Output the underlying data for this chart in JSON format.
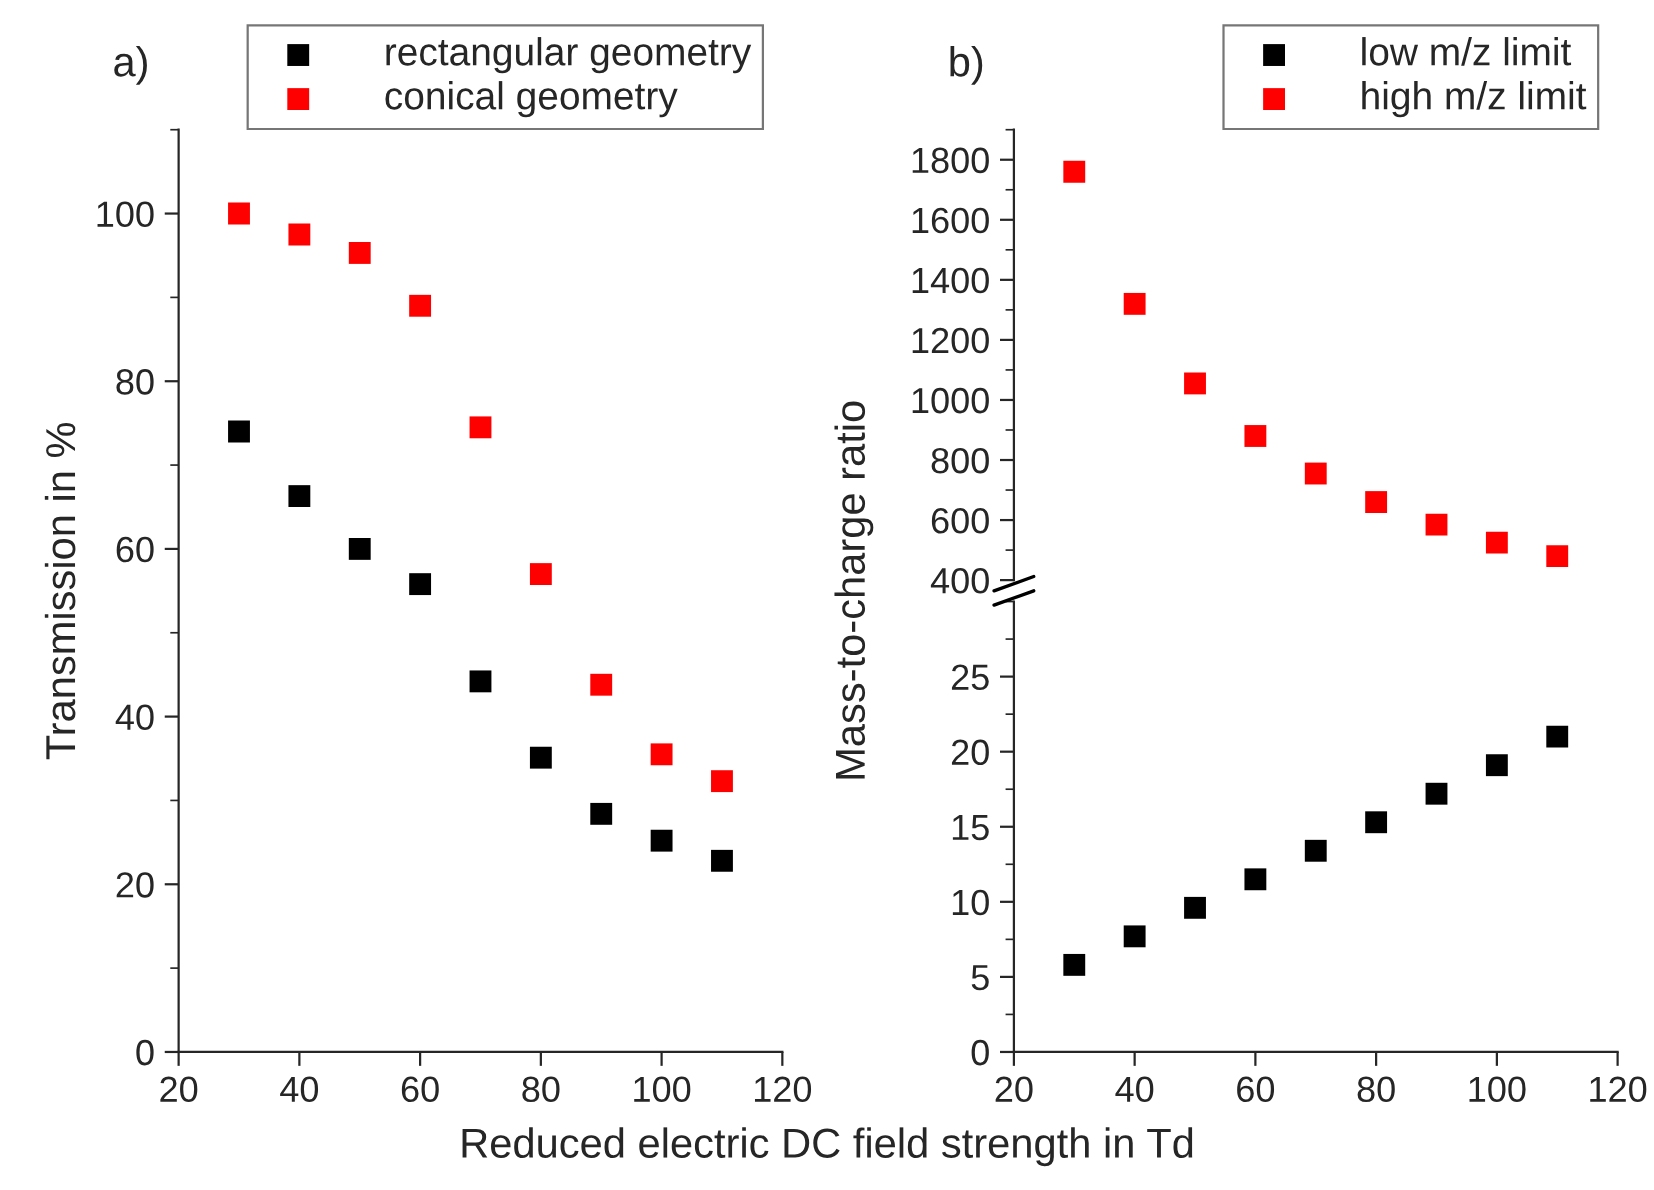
{
  "chart_data": [
    {
      "type": "scatter",
      "title": "a)",
      "xlabel": "Reduced electric DC field strength in Td",
      "ylabel": "Transmission in %",
      "x": [
        30,
        40,
        50,
        60,
        70,
        80,
        90,
        100,
        110
      ],
      "xlim": [
        20,
        120
      ],
      "xticks": [
        20,
        40,
        60,
        80,
        100,
        120
      ],
      "ylim": [
        0,
        110
      ],
      "yticks": [
        0,
        20,
        40,
        60,
        80,
        100
      ],
      "marker": "square",
      "legend": "top right",
      "grid": false,
      "series": [
        {
          "name": "rectangular geometry",
          "color": "#000000",
          "values": [
            74,
            66.3,
            60,
            55.8,
            44.2,
            35.1,
            28.4,
            25.2,
            22.8
          ]
        },
        {
          "name": "conical geometry",
          "color": "#ff0000",
          "values": [
            100,
            97.5,
            95.3,
            89,
            74.5,
            57,
            43.8,
            35.5,
            32.3
          ]
        }
      ]
    },
    {
      "type": "scatter",
      "title": "b)",
      "ylabel": "Mass-to-charge ratio",
      "x": [
        30,
        40,
        50,
        60,
        70,
        80,
        90,
        100,
        110
      ],
      "xlim": [
        20,
        120
      ],
      "xticks": [
        20,
        40,
        60,
        80,
        100,
        120
      ],
      "ylim": [
        400,
        1900
      ],
      "yticks": [
        400,
        600,
        800,
        1000,
        1200,
        1400,
        1600,
        1800
      ],
      "tick_labels": "y",
      "marker": "square",
      "legend": "top right",
      "grid": false,
      "series": [
        {
          "name": "high m/z limit",
          "color": "#ff0000",
          "values": [
            1760,
            1320,
            1055,
            880,
            755,
            660,
            585,
            525,
            480
          ]
        }
      ]
    },
    {
      "type": "scatter",
      "x": [
        30,
        40,
        50,
        60,
        70,
        80,
        90,
        100,
        110
      ],
      "xlim": [
        20,
        120
      ],
      "xticks": [
        20,
        40,
        60,
        80,
        100,
        120
      ],
      "ylim": [
        0,
        30
      ],
      "yticks": [
        0,
        5,
        10,
        15,
        20,
        25
      ],
      "marker": "square",
      "legend": "top right",
      "grid": false,
      "series": [
        {
          "name": "low m/z limit",
          "color": "#000000",
          "values": [
            5.8,
            7.7,
            9.6,
            11.5,
            13.4,
            15.3,
            17.2,
            19.1,
            21.0
          ]
        }
      ]
    }
  ]
}
